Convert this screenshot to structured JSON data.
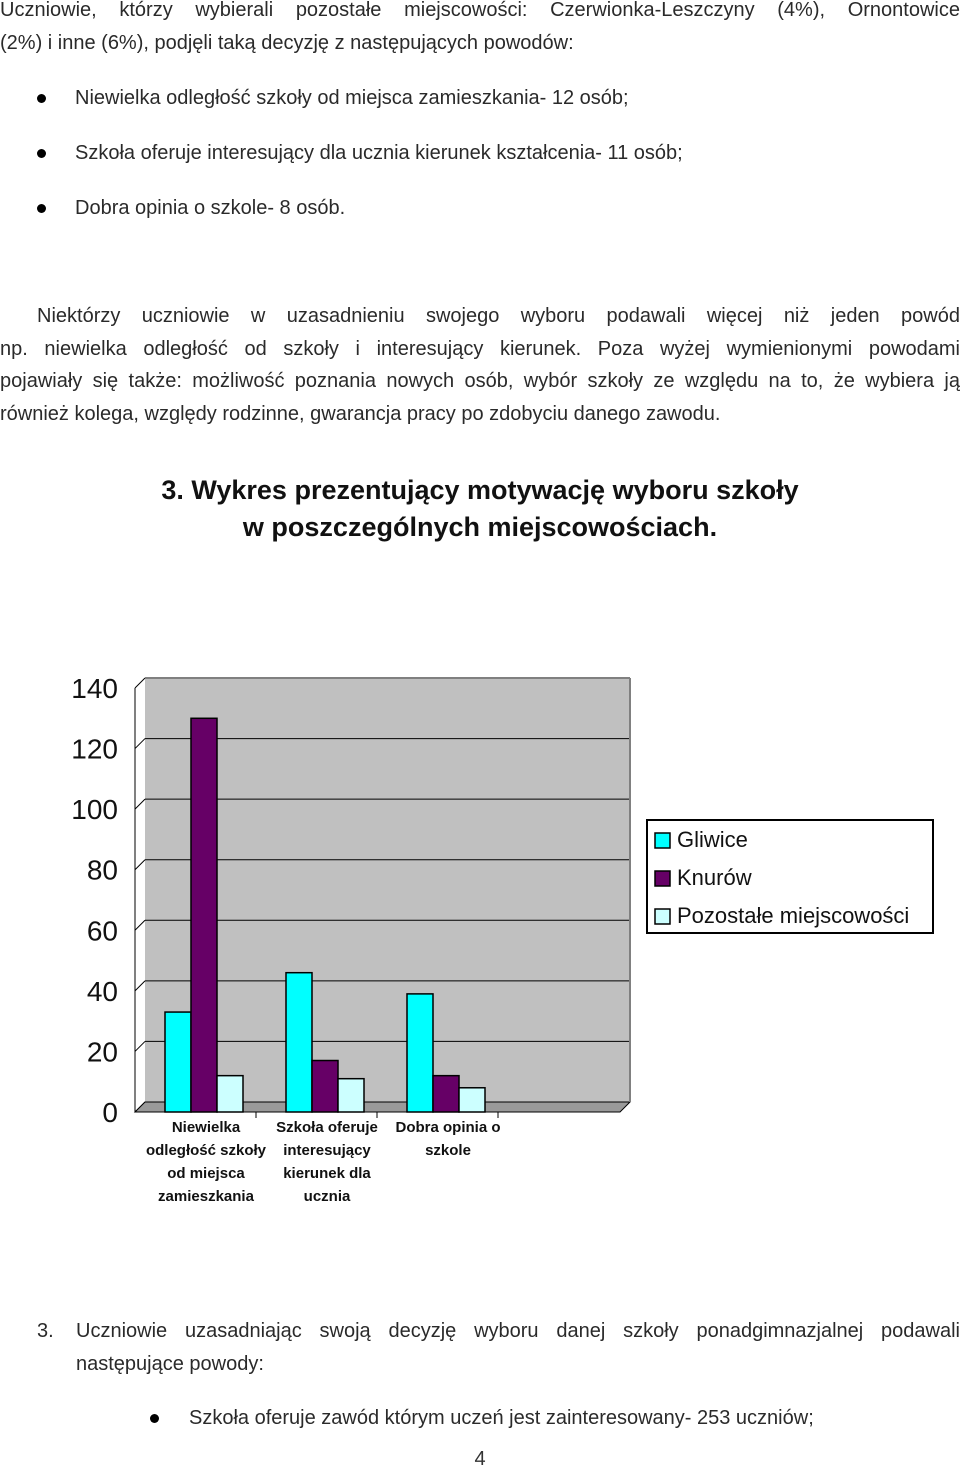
{
  "intro": {
    "line1": "Uczniowie, którzy wybierali pozostałe miejscowości:  Czerwionka-Leszczyny (4%), Ornontowice",
    "line2": "(2%) i inne (6%), podjęli taką decyzję z następujących powodów:"
  },
  "bullets": [
    "Niewielka odległość szkoły od miejsca zamieszkania- 12 osób;",
    "Szkoła oferuje interesujący dla ucznia  kierunek kształcenia- 11 osób;",
    "Dobra opinia o szkole- 8 osób."
  ],
  "para2": {
    "line1": "Niektórzy uczniowie w uzasadnieniu swojego wyboru podawali więcej niż jeden powód",
    "line2": "np. niewielka odległość od szkoły i interesujący kierunek. Poza wyżej wymienionymi powodami",
    "line3": "pojawiały się także: możliwość poznania nowych osób, wybór szkoły ze względu na to, że wybiera ją",
    "line4": "również kolega, względy rodzinne, gwarancja pracy po zdobyciu danego zawodu."
  },
  "heading": {
    "line1": "3. Wykres prezentujący motywację wyboru szkoły",
    "line2": "w poszczególnych miejscowościach."
  },
  "chart_data": {
    "type": "bar",
    "categories": [
      [
        "Niewielka",
        "odległość szkoły",
        "od miejsca",
        "zamieszkania"
      ],
      [
        "Szkoła oferuje",
        "interesujący",
        "kierunek dla",
        "ucznia"
      ],
      [
        "Dobra opinia o",
        "szkole"
      ]
    ],
    "series": [
      {
        "name": "Gliwice",
        "values": [
          33,
          46,
          39
        ],
        "color": "#00FFFF"
      },
      {
        "name": "Knurów",
        "values": [
          130,
          17,
          12
        ],
        "color": "#660066"
      },
      {
        "name": "Pozostałe miejscowości",
        "values": [
          12,
          11,
          8
        ],
        "color": "#CCFFFF"
      }
    ],
    "yticks": [
      "0",
      "20",
      "40",
      "60",
      "80",
      "100",
      "120",
      "140"
    ],
    "ylim": [
      0,
      140
    ],
    "plot_background": "#C0C0C0",
    "legend_position": "right",
    "grid": true
  },
  "section3": {
    "number": "3.",
    "line1": "Uczniowie uzasadniając swoją decyzję wyboru danej szkoły ponadgimnazjalnej podawali",
    "line2": "następujące powody:"
  },
  "bullet2": "Szkoła oferuje zawód którym uczeń jest zainteresowany- 253 uczniów;",
  "page_number": "4"
}
